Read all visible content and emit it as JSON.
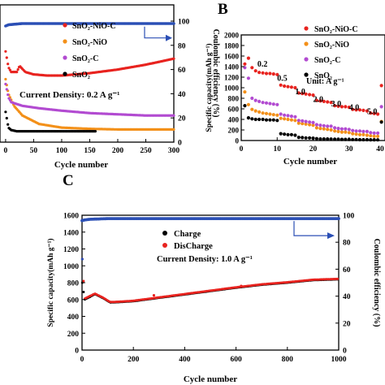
{
  "chart_data": [
    {
      "panel": "A",
      "type": "line",
      "panel_label": "",
      "xlabel": "Cycle number",
      "ylabel": "",
      "y2label": "Coulombic efficiency (%)",
      "xlim": [
        -10,
        300
      ],
      "x_ticks": [
        "0",
        "50",
        "100",
        "150",
        "200",
        "250",
        "300"
      ],
      "ylim_right": [
        0,
        100
      ],
      "y2_ticks": [
        "0",
        "20",
        "40",
        "60",
        "80",
        "100"
      ],
      "annotation": "Current Density: 0.2 A g⁻¹",
      "legend": "top-left",
      "series": [
        {
          "name": "SnO₂-NiO-C",
          "color": "#e8231f",
          "x": [
            0,
            5,
            10,
            20,
            25,
            35,
            50,
            75,
            100,
            150,
            200,
            250,
            300
          ],
          "y2": [
            75,
            62,
            58,
            58,
            63,
            58,
            56,
            55,
            55,
            57,
            60,
            64,
            69
          ]
        },
        {
          "name": "SnO₂-NiO",
          "color": "#f39019",
          "x": [
            0,
            5,
            15,
            30,
            60,
            100,
            150,
            200,
            250,
            300
          ],
          "y2": [
            52,
            40,
            30,
            22,
            15,
            12,
            11,
            10.5,
            10.5,
            10.5
          ]
        },
        {
          "name": "SnO₂-C",
          "color": "#b24bd1",
          "x": [
            0,
            5,
            10,
            30,
            60,
            100,
            150,
            200,
            250,
            300
          ],
          "y2": [
            48,
            37,
            33,
            30,
            28,
            26,
            24,
            23,
            22,
            22
          ]
        },
        {
          "name": "SnO₂",
          "color": "#000000",
          "x": [
            0,
            5,
            10,
            20,
            40,
            80,
            120,
            160
          ],
          "y2": [
            25,
            12,
            10,
            9,
            9,
            9,
            9,
            9
          ]
        },
        {
          "name": "",
          "color": "#2b4fb5",
          "axis": "coulombic",
          "x": [
            0,
            5,
            30,
            100,
            200,
            300
          ],
          "y2": [
            96,
            97,
            98,
            98,
            98,
            98
          ]
        }
      ]
    },
    {
      "panel": "B",
      "type": "scatter",
      "panel_label": "B",
      "xlabel": "Cycle number",
      "ylabel": "Specific capacity(mAh g⁻¹)",
      "xlim": [
        0,
        40
      ],
      "x_ticks": [
        "0",
        "10",
        "20",
        "30",
        "40"
      ],
      "ylim": [
        0,
        2000
      ],
      "y_ticks": [
        "0",
        "200",
        "400",
        "600",
        "800",
        "1000",
        "1200",
        "1400",
        "1600",
        "1800",
        "2000"
      ],
      "rate_labels": [
        {
          "text": "0.2",
          "x": 4.5,
          "y": 1400
        },
        {
          "text": "0.5",
          "x": 10,
          "y": 1130
        },
        {
          "text": "1.0",
          "x": 15,
          "y": 880
        },
        {
          "text": "2.0",
          "x": 20,
          "y": 730
        },
        {
          "text": "3.0",
          "x": 25,
          "y": 650
        },
        {
          "text": "4.0",
          "x": 30,
          "y": 580
        },
        {
          "text": "5.0",
          "x": 35,
          "y": 500
        }
      ],
      "unit_label": "Unit: A g⁻¹",
      "legend": "top-right",
      "series": [
        {
          "name": "SnO₂-NiO-C",
          "color": "#e8231f",
          "x": [
            1,
            2,
            3,
            4,
            5,
            6,
            7,
            8,
            9,
            10,
            11,
            12,
            13,
            14,
            15,
            16,
            17,
            18,
            19,
            20,
            21,
            22,
            23,
            24,
            25,
            26,
            27,
            28,
            29,
            30,
            31,
            32,
            33,
            34,
            35,
            36,
            37,
            38,
            39,
            40
          ],
          "y": [
            1450,
            1560,
            1380,
            1320,
            1290,
            1280,
            1270,
            1270,
            1260,
            1250,
            1050,
            1030,
            1020,
            1010,
            1000,
            900,
            890,
            880,
            870,
            860,
            760,
            750,
            740,
            730,
            720,
            660,
            650,
            640,
            640,
            630,
            590,
            580,
            580,
            570,
            560,
            520,
            510,
            500,
            1040,
            1060
          ]
        },
        {
          "name": "SnO₂-NiO",
          "color": "#f39019",
          "x": [
            1,
            2,
            3,
            4,
            5,
            6,
            7,
            8,
            9,
            10,
            11,
            12,
            13,
            14,
            15,
            16,
            17,
            18,
            19,
            20,
            21,
            22,
            23,
            24,
            25,
            26,
            27,
            28,
            29,
            30,
            31,
            32,
            33,
            34,
            35,
            36,
            37,
            38,
            39,
            40
          ],
          "y": [
            920,
            680,
            590,
            560,
            540,
            520,
            510,
            500,
            490,
            480,
            420,
            410,
            400,
            390,
            380,
            330,
            320,
            310,
            300,
            290,
            240,
            230,
            220,
            210,
            200,
            180,
            170,
            160,
            160,
            150,
            130,
            120,
            110,
            110,
            100,
            90,
            80,
            80,
            360,
            480
          ]
        },
        {
          "name": "SnO₂-C",
          "color": "#b24bd1",
          "x": [
            1,
            2,
            3,
            4,
            5,
            6,
            7,
            8,
            9,
            10,
            11,
            12,
            13,
            14,
            15,
            16,
            17,
            18,
            19,
            20,
            21,
            22,
            23,
            24,
            25,
            26,
            27,
            28,
            29,
            30,
            31,
            32,
            33,
            34,
            35,
            36,
            37,
            38,
            39,
            40
          ],
          "y": [
            1380,
            1180,
            800,
            760,
            740,
            720,
            710,
            700,
            690,
            680,
            500,
            480,
            470,
            460,
            450,
            380,
            370,
            360,
            350,
            340,
            300,
            290,
            280,
            270,
            270,
            240,
            230,
            220,
            220,
            210,
            190,
            180,
            180,
            170,
            170,
            150,
            140,
            140,
            640,
            660
          ]
        },
        {
          "name": "SnO₂",
          "color": "#000000",
          "x": [
            1,
            2,
            3,
            4,
            5,
            6,
            7,
            8,
            9,
            10,
            11,
            12,
            13,
            14,
            15,
            16,
            17,
            18,
            19,
            20,
            21,
            22,
            23,
            24,
            25,
            26,
            27,
            28,
            29,
            30,
            31,
            32,
            33,
            34,
            35,
            36,
            37,
            38,
            39,
            40
          ],
          "y": [
            660,
            430,
            410,
            400,
            400,
            400,
            390,
            390,
            390,
            380,
            130,
            120,
            110,
            110,
            100,
            60,
            55,
            50,
            50,
            45,
            35,
            30,
            30,
            30,
            28,
            25,
            25,
            22,
            22,
            20,
            18,
            18,
            16,
            16,
            15,
            14,
            14,
            12,
            350,
            370
          ]
        }
      ]
    },
    {
      "panel": "C",
      "type": "line",
      "panel_label": "C",
      "xlabel": "Cycle number",
      "ylabel": "Specific capacity(mAh g⁻¹)",
      "y2label": "Coulombic efficiency (%)",
      "xlim": [
        0,
        1000
      ],
      "x_ticks": [
        "0",
        "200",
        "400",
        "600",
        "800",
        "1000"
      ],
      "ylim": [
        0,
        1600
      ],
      "y_ticks": [
        "0",
        "200",
        "400",
        "600",
        "800",
        "1000",
        "1200",
        "1400",
        "1600"
      ],
      "ylim_right": [
        0,
        100
      ],
      "y2_ticks": [
        "0",
        "20",
        "40",
        "60",
        "80",
        "100"
      ],
      "annotation": "Current Density: 1.0 A g⁻¹",
      "legend": "top-center",
      "series": [
        {
          "name": "Charge",
          "color": "#000000",
          "x": [
            1,
            10,
            30,
            50,
            80,
            110,
            150,
            200,
            300,
            400,
            500,
            600,
            700,
            800,
            900,
            1000
          ],
          "y": [
            800,
            600,
            630,
            665,
            620,
            565,
            570,
            580,
            620,
            660,
            700,
            740,
            775,
            800,
            830,
            840
          ]
        },
        {
          "name": "DisCharge",
          "color": "#e8231f",
          "x": [
            1,
            10,
            30,
            50,
            80,
            110,
            150,
            200,
            300,
            400,
            500,
            600,
            700,
            800,
            900,
            1000
          ],
          "y": [
            1080,
            610,
            640,
            670,
            625,
            570,
            575,
            585,
            625,
            665,
            705,
            745,
            780,
            805,
            835,
            845
          ]
        },
        {
          "name": "",
          "color": "#2b4fb5",
          "axis": "coulombic",
          "x": [
            0,
            10,
            30,
            100,
            500,
            1000
          ],
          "y2": [
            96,
            96.5,
            97,
            97.5,
            97.5,
            97.5
          ]
        }
      ]
    }
  ]
}
